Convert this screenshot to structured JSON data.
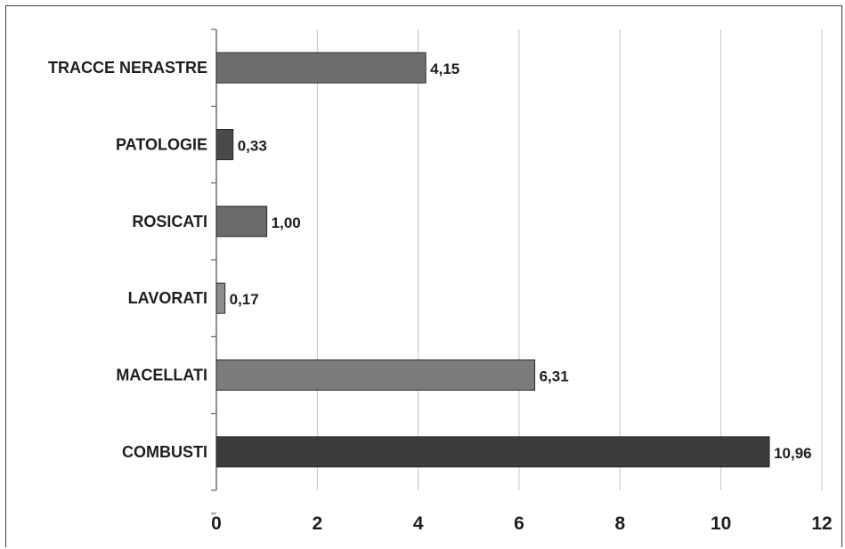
{
  "chart_data": {
    "type": "bar",
    "orientation": "horizontal",
    "title": "",
    "xlabel": "",
    "ylabel": "",
    "categories": [
      "TRACCE NERASTRE",
      "PATOLOGIE",
      "ROSICATI",
      "LAVORATI",
      "MACELLATI",
      "COMBUSTI"
    ],
    "values": [
      4.15,
      0.33,
      1.0,
      0.17,
      6.31,
      10.96
    ],
    "value_labels": [
      "4,15",
      "0,33",
      "1,00",
      "0,17",
      "6,31",
      "10,96"
    ],
    "bar_colors": [
      "#6e6e6e",
      "#4a4a4a",
      "#6a6a6a",
      "#8e8e8e",
      "#7c7c7c",
      "#3c3c3c"
    ],
    "xlim": [
      0,
      12
    ],
    "x_ticks": [
      0,
      2,
      4,
      6,
      8,
      10,
      12
    ],
    "x_tick_labels": [
      "0",
      "2",
      "4",
      "6",
      "8",
      "10",
      "12"
    ],
    "gridlines": "vertical",
    "legend": "none"
  }
}
